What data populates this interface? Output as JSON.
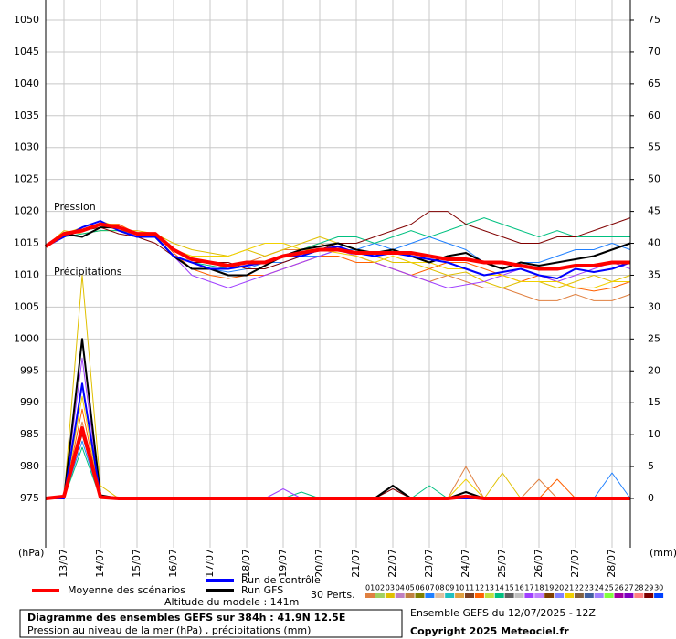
{
  "chart_data": {
    "type": "line",
    "title": "Diagramme des ensembles GEFS sur 384h : 41.9N 12.5E",
    "subtitle": "Pression au niveau de la mer (hPa) , précipitations (mm)",
    "y_label": "(hPa)",
    "y2_label": "(mm)",
    "pressure_label": "Pression",
    "precip_label": "Précipitations",
    "altitude": "Altitude du modele : 141m",
    "run_info": "Ensemble GEFS du 12/07/2025 - 12Z",
    "copyright": "Copyright 2025 Meteociel.fr",
    "perts_label": "30 Perts.",
    "grid": true,
    "x": [
      0,
      12,
      24,
      36,
      48,
      60,
      72,
      84,
      96,
      108,
      120,
      132,
      144,
      156,
      168,
      180,
      192,
      204,
      216,
      228,
      240,
      252,
      264,
      276,
      288,
      300,
      312,
      324,
      336,
      348,
      360,
      372,
      384
    ],
    "xlim": [
      0,
      384
    ],
    "xticks": [
      {
        "value": 12,
        "label": "13/07"
      },
      {
        "value": 36,
        "label": "14/07"
      },
      {
        "value": 60,
        "label": "15/07"
      },
      {
        "value": 84,
        "label": "16/07"
      },
      {
        "value": 108,
        "label": "17/07"
      },
      {
        "value": 132,
        "label": "18/07"
      },
      {
        "value": 156,
        "label": "19/07"
      },
      {
        "value": 180,
        "label": "20/07"
      },
      {
        "value": 204,
        "label": "21/07"
      },
      {
        "value": 228,
        "label": "22/07"
      },
      {
        "value": 252,
        "label": "23/07"
      },
      {
        "value": 276,
        "label": "24/07"
      },
      {
        "value": 300,
        "label": "25/07"
      },
      {
        "value": 324,
        "label": "26/07"
      },
      {
        "value": 348,
        "label": "27/07"
      },
      {
        "value": 372,
        "label": "28/07"
      }
    ],
    "ylim": [
      967.27,
      1053.15
    ],
    "yticks": [
      975,
      980,
      985,
      990,
      995,
      1000,
      1005,
      1010,
      1015,
      1020,
      1025,
      1030,
      1035,
      1040,
      1045,
      1050
    ],
    "y2lim": [
      -7.73,
      78.15
    ],
    "y2ticks": [
      0,
      5,
      10,
      15,
      20,
      25,
      30,
      35,
      40,
      45,
      50,
      55,
      60,
      65,
      70,
      75
    ],
    "series": [
      {
        "name": "Moyenne des scénarios",
        "color": "#ff0000",
        "line_width": 4,
        "pressure": [
          1014.5,
          1016.5,
          1017,
          1018,
          1017.5,
          1016.5,
          1016.5,
          1014,
          1012.5,
          1012,
          1011.5,
          1012,
          1012,
          1013,
          1013.5,
          1014,
          1014,
          1013.5,
          1013.5,
          1013.5,
          1013.5,
          1013,
          1012.5,
          1012.5,
          1012,
          1012,
          1011.5,
          1011,
          1011,
          1011.5,
          1011.5,
          1012,
          1012
        ],
        "precip": [
          0,
          0.3,
          11,
          0.2,
          0,
          0,
          0,
          0,
          0,
          0,
          0,
          0,
          0,
          0,
          0,
          0,
          0,
          0,
          0,
          0,
          0,
          0,
          0,
          0.3,
          0,
          0,
          0,
          0,
          0,
          0,
          0,
          0,
          0
        ]
      },
      {
        "name": "Run de contrôle",
        "color": "#0000ff",
        "line_width": 2,
        "pressure": [
          1014.5,
          1016,
          1017.5,
          1018.5,
          1017,
          1016,
          1016,
          1013,
          1012,
          1011,
          1011,
          1011.5,
          1012,
          1013,
          1013,
          1014,
          1014.5,
          1013.5,
          1013,
          1013.5,
          1013,
          1012.5,
          1012,
          1011,
          1010,
          1010.5,
          1011,
          1010,
          1009.5,
          1011,
          1010.5,
          1011,
          1012
        ],
        "precip": [
          0,
          0,
          18,
          0.3,
          0,
          0,
          0,
          0,
          0,
          0,
          0,
          0,
          0,
          0,
          0,
          0,
          0,
          0,
          0,
          0,
          0,
          0,
          0,
          0,
          0,
          0,
          0,
          0,
          0,
          0,
          0,
          0,
          0
        ]
      },
      {
        "name": "Run GFS",
        "color": "#000000",
        "line_width": 2,
        "pressure": [
          1014.5,
          1016.5,
          1016,
          1017.5,
          1017.5,
          1016.5,
          1016,
          1013,
          1011,
          1011,
          1010,
          1010,
          1011.5,
          1013,
          1014,
          1014.5,
          1015,
          1014,
          1013.5,
          1014,
          1013,
          1012,
          1013,
          1013.5,
          1012,
          1011,
          1012,
          1011.5,
          1012,
          1012.5,
          1013,
          1014,
          1015
        ],
        "precip": [
          0,
          0,
          25,
          0.5,
          0,
          0,
          0,
          0,
          0,
          0,
          0,
          0,
          0,
          0,
          0,
          0,
          0,
          0,
          0,
          2,
          0,
          0,
          0,
          1,
          0,
          0,
          0,
          0,
          0,
          0,
          0,
          0,
          0
        ]
      }
    ],
    "perturbations": [
      {
        "name": "01",
        "color": "#e08040",
        "pressure": [
          1014.5,
          1016,
          1017,
          1018,
          1017,
          1016,
          1016,
          1014,
          1012,
          1012,
          1011,
          1012,
          1013,
          1014,
          1014,
          1015,
          1014,
          1013,
          1012,
          1011,
          1010,
          1009,
          1010,
          1009,
          1008,
          1008,
          1007,
          1006,
          1006,
          1007,
          1006,
          1006,
          1007
        ],
        "precip": [
          0,
          0,
          12,
          0,
          0,
          0,
          0,
          0,
          0,
          0,
          0,
          0,
          0,
          0,
          0,
          0,
          0,
          0,
          0,
          0,
          0,
          0,
          0,
          5,
          0,
          0,
          0,
          3,
          0,
          0,
          0,
          0,
          0
        ]
      },
      {
        "name": "02",
        "color": "#a0d060"
      },
      {
        "name": "03",
        "color": "#e0c000",
        "pressure": [
          1014.5,
          1017,
          1016.5,
          1017,
          1017,
          1017,
          1016.5,
          1015,
          1014,
          1013.5,
          1013,
          1014,
          1013,
          1014,
          1015,
          1016,
          1015,
          1014,
          1013,
          1012,
          1012,
          1011,
          1010,
          1010.5,
          1009,
          1008,
          1009,
          1009,
          1008,
          1009,
          1010,
          1009,
          1010
        ],
        "precip": [
          0,
          0,
          35,
          2,
          0,
          0,
          0,
          0,
          0,
          0,
          0,
          0,
          0,
          0,
          0,
          0,
          0,
          0,
          0,
          0,
          0,
          0,
          0,
          0,
          0,
          4,
          0,
          0,
          0,
          0,
          0,
          0,
          0
        ]
      },
      {
        "name": "04",
        "color": "#c080c0"
      },
      {
        "name": "05",
        "color": "#c08040"
      },
      {
        "name": "06",
        "color": "#808000"
      },
      {
        "name": "07",
        "color": "#2080ff",
        "pressure": [
          1014.5,
          1016,
          1017.5,
          1018.5,
          1017,
          1016,
          1016,
          1013,
          1012,
          1011,
          1010.5,
          1011,
          1012,
          1012,
          1013,
          1013,
          1014,
          1014,
          1015,
          1014,
          1015,
          1016,
          1015,
          1014,
          1012,
          1011,
          1012,
          1012,
          1013,
          1014,
          1014,
          1015,
          1014
        ],
        "precip": [
          0,
          0,
          9,
          0,
          0,
          0,
          0,
          0,
          0,
          0,
          0,
          0,
          0,
          0,
          0,
          0,
          0,
          0,
          0,
          0,
          0,
          0,
          0,
          0,
          0,
          0,
          0,
          0,
          0,
          0,
          0,
          4,
          0
        ]
      },
      {
        "name": "08",
        "color": "#e0c0a0"
      },
      {
        "name": "09",
        "color": "#20c0c0"
      },
      {
        "name": "10",
        "color": "#e0a040"
      },
      {
        "name": "11",
        "color": "#804020"
      },
      {
        "name": "12",
        "color": "#ff6000",
        "pressure": [
          1014.5,
          1016.5,
          1017,
          1018,
          1018,
          1016.5,
          1016.5,
          1013.5,
          1011,
          1010,
          1009.5,
          1010,
          1010,
          1011,
          1012,
          1013,
          1013,
          1012,
          1012,
          1011,
          1010,
          1011,
          1012,
          1012,
          1011,
          1010,
          1009,
          1010,
          1009,
          1008,
          1007.5,
          1008,
          1009
        ],
        "precip": [
          0,
          0,
          14,
          0,
          0,
          0,
          0,
          0,
          0,
          0,
          0,
          0,
          0,
          0,
          0,
          0,
          0,
          0,
          0,
          0,
          0,
          0,
          0,
          0,
          0,
          0,
          0,
          0,
          3,
          0,
          0,
          0,
          0
        ]
      },
      {
        "name": "13",
        "color": "#c0e040"
      },
      {
        "name": "14",
        "color": "#00c080",
        "pressure": [
          1014.5,
          1016,
          1016.5,
          1017,
          1017,
          1016.5,
          1016,
          1013,
          1012,
          1011.5,
          1011,
          1012,
          1012,
          1013,
          1014,
          1015,
          1016,
          1016,
          1015,
          1016,
          1017,
          1016,
          1017,
          1018,
          1019,
          1018,
          1017,
          1016,
          1017,
          1016,
          1016,
          1016,
          1016
        ],
        "precip": [
          0,
          0,
          8,
          0,
          0,
          0,
          0,
          0,
          0,
          0,
          0,
          0,
          0,
          0,
          1,
          0,
          0,
          0,
          0,
          0,
          0,
          2,
          0,
          0,
          0,
          0,
          0,
          0,
          0,
          0,
          0,
          0,
          0
        ]
      },
      {
        "name": "15",
        "color": "#606060"
      },
      {
        "name": "16",
        "color": "#c0c0c0"
      },
      {
        "name": "17",
        "color": "#a040ff",
        "pressure": [
          1014.5,
          1016,
          1017,
          1018,
          1017.5,
          1016,
          1016,
          1013,
          1010,
          1009,
          1008,
          1009,
          1010,
          1011,
          1012,
          1013,
          1014,
          1013,
          1012,
          1011,
          1010,
          1009,
          1008,
          1008.5,
          1009,
          1010,
          1011,
          1010,
          1009,
          1010,
          1011,
          1012,
          1011
        ],
        "precip": [
          0,
          0,
          22,
          0,
          0,
          0,
          0,
          0,
          0,
          0,
          0,
          0,
          0,
          1.5,
          0,
          0,
          0,
          0,
          0,
          0,
          0,
          0,
          0,
          0,
          0,
          0,
          0,
          0,
          0,
          0,
          0,
          0,
          0
        ]
      },
      {
        "name": "18",
        "color": "#c080ff"
      },
      {
        "name": "19",
        "color": "#804000"
      },
      {
        "name": "20",
        "color": "#8080ff"
      },
      {
        "name": "21",
        "color": "#f0d000",
        "pressure": [
          1014.5,
          1016.5,
          1017.5,
          1018.5,
          1017.5,
          1016.5,
          1016,
          1014,
          1013,
          1013,
          1013,
          1014,
          1015,
          1015,
          1014,
          1014,
          1013.5,
          1013,
          1012,
          1013,
          1012,
          1012,
          1011,
          1011,
          1010,
          1010,
          1009,
          1009,
          1009,
          1008,
          1008,
          1009,
          1009
        ],
        "precip": [
          0,
          0,
          16,
          0,
          0,
          0,
          0,
          0,
          0,
          0,
          0,
          0,
          0,
          0,
          0,
          0,
          0,
          0,
          0,
          0,
          0,
          0,
          0,
          3,
          0,
          0,
          0,
          0,
          0,
          0,
          0,
          0,
          0
        ]
      },
      {
        "name": "22",
        "color": "#806040"
      },
      {
        "name": "23",
        "color": "#4060a0"
      },
      {
        "name": "24",
        "color": "#a080ff"
      },
      {
        "name": "25",
        "color": "#80ff40"
      },
      {
        "name": "26",
        "color": "#a000a0"
      },
      {
        "name": "27",
        "color": "#8000c0"
      },
      {
        "name": "28",
        "color": "#ff8080"
      },
      {
        "name": "29",
        "color": "#800000",
        "pressure": [
          1014.5,
          1016,
          1017,
          1017.5,
          1016.5,
          1016,
          1015,
          1013,
          1012,
          1012,
          1012,
          1011,
          1011,
          1012,
          1013,
          1014,
          1015,
          1015,
          1016,
          1017,
          1018,
          1020,
          1020,
          1018,
          1017,
          1016,
          1015,
          1015,
          1016,
          1016,
          1017,
          1018,
          1019
        ],
        "precip": [
          0,
          0,
          10,
          0,
          0,
          0,
          0,
          0,
          0,
          0,
          0,
          0,
          0,
          0,
          0,
          0,
          0,
          0,
          0,
          1.5,
          0,
          0,
          0,
          0,
          0,
          0,
          0,
          0,
          0,
          0,
          0,
          0,
          0
        ]
      },
      {
        "name": "30",
        "color": "#0040ff"
      }
    ]
  }
}
